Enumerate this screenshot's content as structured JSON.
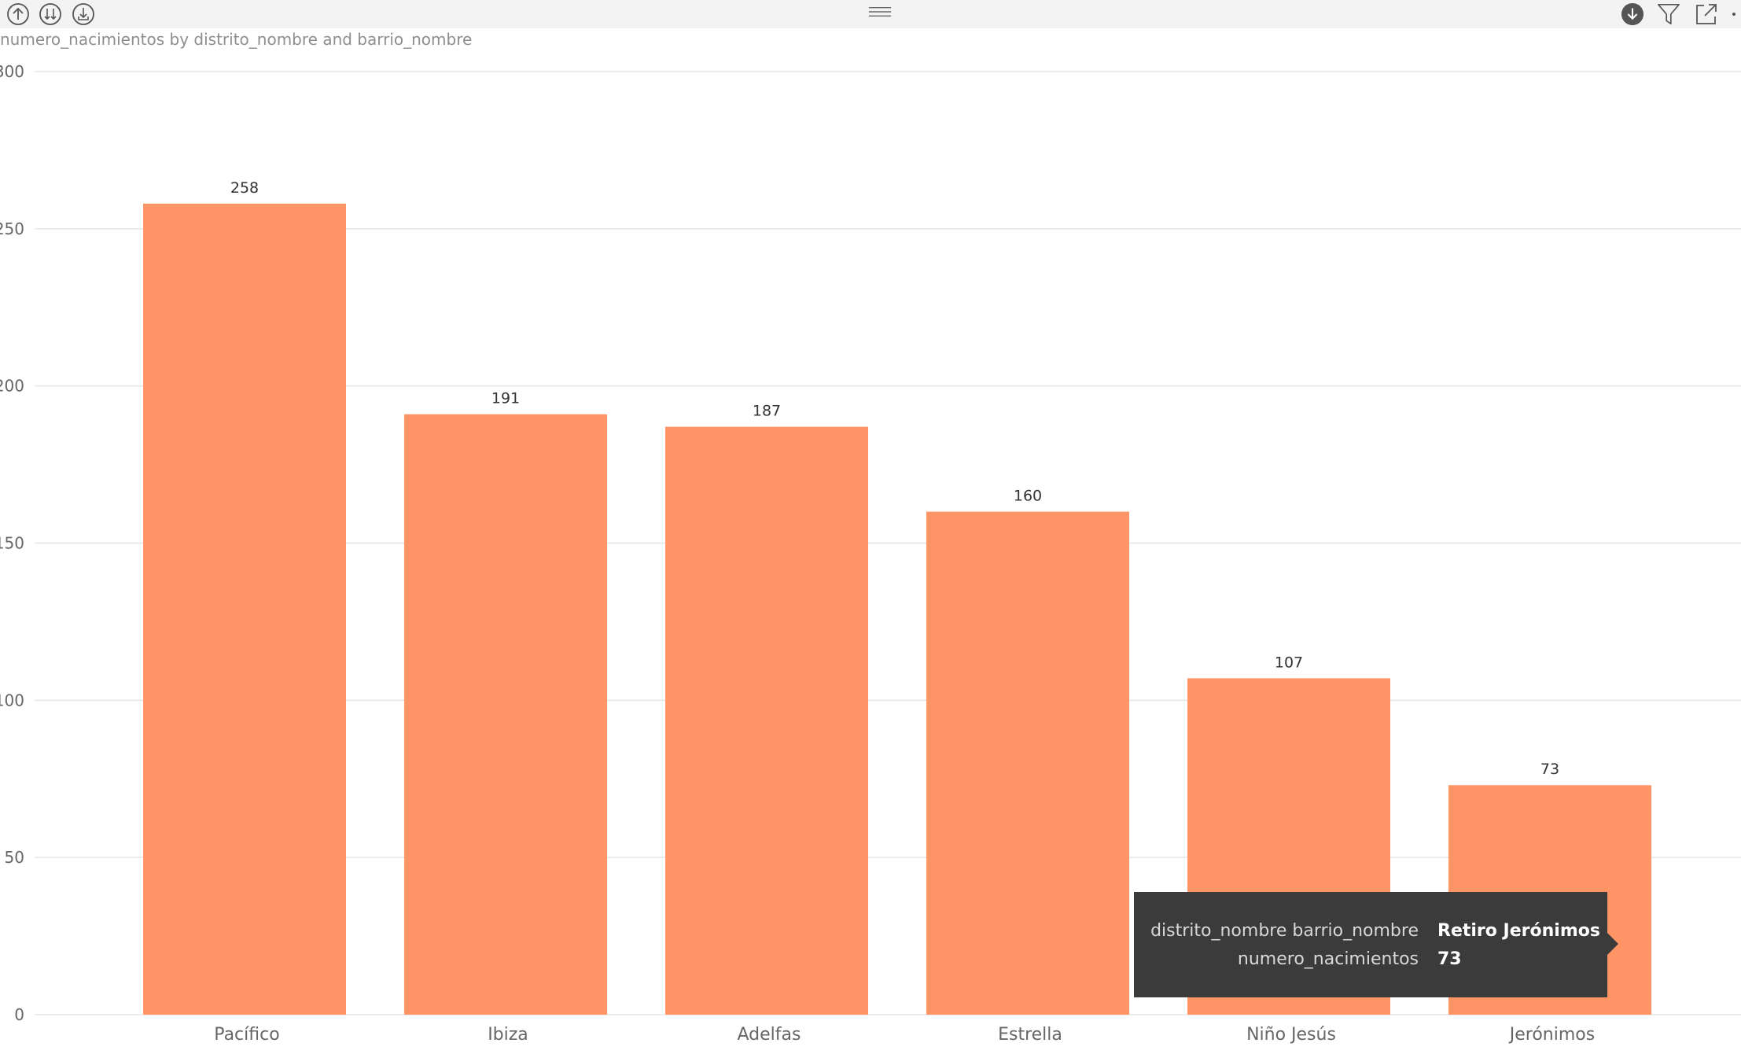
{
  "toolbar": {
    "left_icons": [
      "drill-up-icon",
      "drill-down-all-icon",
      "expand-hierarchy-icon"
    ],
    "center_icon": "drag-handle-icon",
    "right_icons": [
      "drill-mode-icon",
      "filter-icon",
      "focus-mode-icon",
      "more-options-icon"
    ]
  },
  "colors": {
    "bar": "#FF9566",
    "grid": "#e6e6e6",
    "axis_text": "#666666",
    "label_text": "#333333",
    "tooltip_bg": "#3b3b3b"
  },
  "tooltip": {
    "rows": [
      {
        "key": "distrito_nombre barrio_nombre",
        "value": "Retiro Jerónimos"
      },
      {
        "key": "numero_nacimientos",
        "value": "73"
      }
    ]
  },
  "chart_data": {
    "type": "bar",
    "title": "numero_nacimientos by distrito_nombre and barrio_nombre",
    "categories": [
      "Pacífico",
      "Ibiza",
      "Adelfas",
      "Estrella",
      "Niño Jesús",
      "Jerónimos"
    ],
    "values": [
      258,
      191,
      187,
      160,
      107,
      73
    ],
    "data_labels": [
      "258",
      "191",
      "187",
      "160",
      "107",
      "73"
    ],
    "y_ticks": [
      0,
      50,
      100,
      150,
      200,
      250,
      300
    ],
    "y_tick_labels": [
      "0",
      "50",
      "100",
      "150",
      "200",
      "250",
      "300"
    ],
    "ylim": [
      0,
      300
    ],
    "grid": true,
    "legend": "none"
  }
}
